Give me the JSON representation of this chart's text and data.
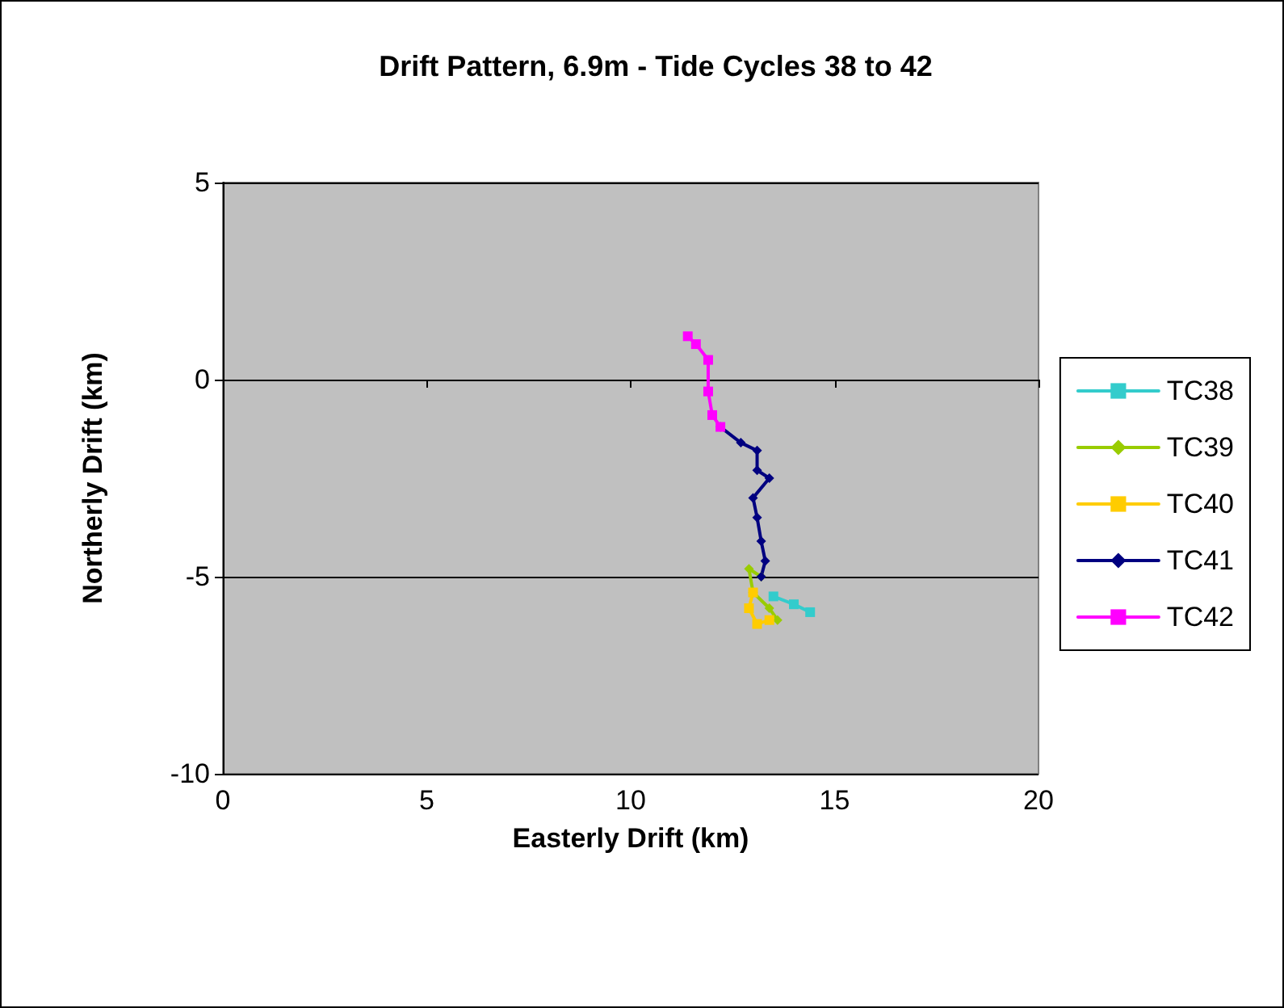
{
  "chart_data": {
    "type": "line",
    "title": "Drift Pattern, 6.9m - Tide Cycles 38 to 42",
    "xlabel": "Easterly Drift (km)",
    "ylabel": "Northerly Drift (km)",
    "xlim": [
      0,
      20
    ],
    "xticks": [
      0,
      5,
      10,
      15,
      20
    ],
    "ylim": [
      -10,
      5
    ],
    "yticks": [
      -10,
      -5,
      0,
      5
    ],
    "grid": "y",
    "legend": "right",
    "line_style": "solid",
    "series": [
      {
        "name": "TC38",
        "color": "#33cccc",
        "marker": "square",
        "x": [
          13.5,
          14.0,
          14.4
        ],
        "values": [
          -5.5,
          -5.7,
          -5.9
        ]
      },
      {
        "name": "TC39",
        "color": "#99cc00",
        "marker": "diamond",
        "x": [
          13.2,
          12.9,
          13.0,
          13.4,
          13.6
        ],
        "values": [
          -5.0,
          -4.8,
          -5.4,
          -5.8,
          -6.1
        ]
      },
      {
        "name": "TC40",
        "color": "#ffcc00",
        "marker": "square",
        "x": [
          13.0,
          12.9,
          13.1,
          13.4
        ],
        "values": [
          -5.4,
          -5.8,
          -6.2,
          -6.1
        ]
      },
      {
        "name": "TC41",
        "color": "#000080",
        "marker": "diamond",
        "x": [
          12.2,
          12.7,
          13.1,
          13.1,
          13.4,
          13.0,
          13.1,
          13.2,
          13.3,
          13.2
        ],
        "values": [
          -1.2,
          -1.6,
          -1.8,
          -2.3,
          -2.5,
          -3.0,
          -3.5,
          -4.1,
          -4.6,
          -5.0
        ]
      },
      {
        "name": "TC42",
        "color": "#ff00ff",
        "marker": "square",
        "x": [
          11.4,
          11.6,
          11.9,
          11.9,
          12.0,
          12.2
        ],
        "values": [
          1.1,
          0.9,
          0.5,
          -0.3,
          -0.9,
          -1.2
        ]
      }
    ]
  }
}
